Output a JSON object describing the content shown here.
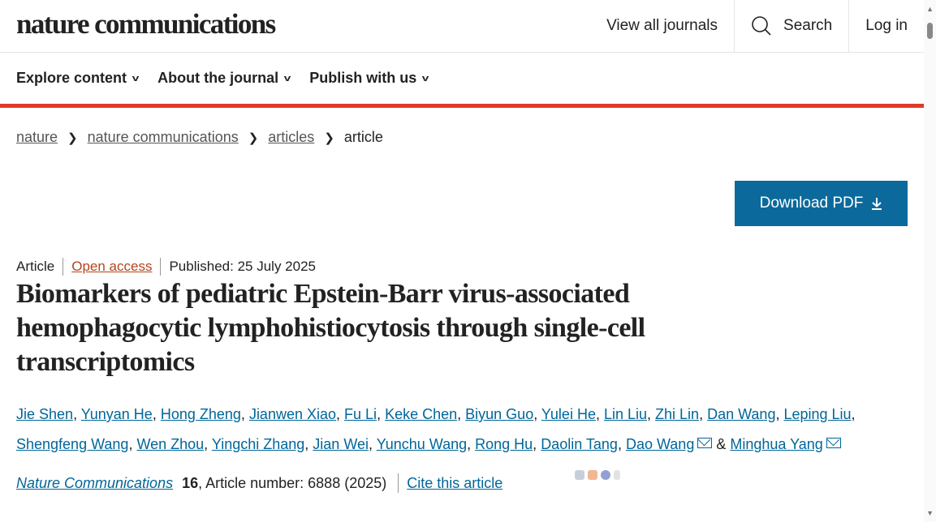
{
  "header": {
    "logo": "nature communications",
    "view_all": "View all journals",
    "search": "Search",
    "login": "Log in"
  },
  "nav": [
    {
      "label": "Explore content"
    },
    {
      "label": "About the journal"
    },
    {
      "label": "Publish with us"
    }
  ],
  "breadcrumb": [
    "nature",
    "nature communications",
    "articles",
    "article"
  ],
  "download_pdf": "Download PDF",
  "meta": {
    "type": "Article",
    "access": "Open access",
    "published": "Published: 25 July 2025"
  },
  "title": "Biomarkers of pediatric Epstein-Barr virus-associated hemophagocytic lymphohistiocytosis through single-cell transcriptomics",
  "authors": [
    "Jie Shen",
    "Yunyan He",
    "Hong Zheng",
    "Jianwen Xiao",
    "Fu Li",
    "Keke Chen",
    "Biyun Guo",
    "Yulei He",
    "Lin Liu",
    "Zhi Lin",
    "Dan Wang",
    "Leping Liu",
    "Shengfeng Wang",
    "Wen Zhou",
    "Yingchi Zhang",
    "Jian Wei",
    "Yunchu Wang",
    "Rong Hu",
    "Daolin Tang",
    "Dao Wang",
    "Minghua Yang"
  ],
  "authors_and": "&",
  "citation": {
    "journal": "Nature Communications",
    "volume": "16",
    "rest": ", Article number: 6888 (2025)",
    "cite": "Cite this article"
  },
  "colors": {
    "accent_red": "#e0392b",
    "link": "#006699",
    "button": "#0b6a9b",
    "open_access": "#b4441b"
  }
}
